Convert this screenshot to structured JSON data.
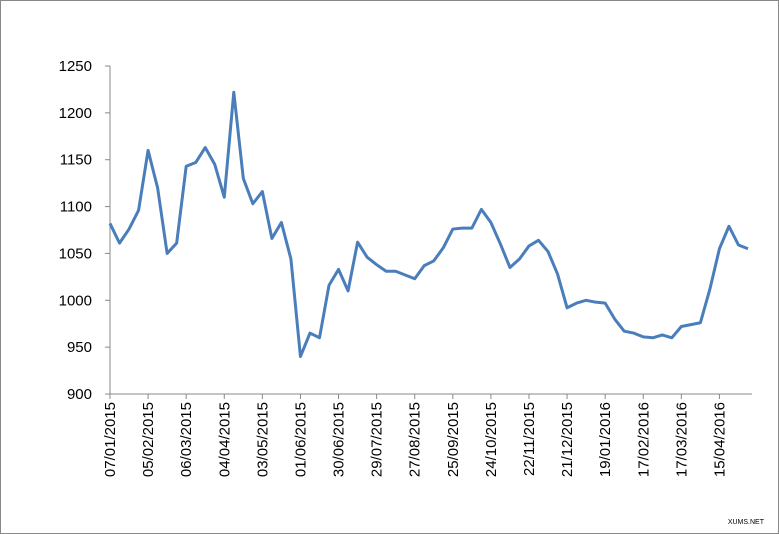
{
  "chart_data": {
    "type": "line",
    "categories": [
      "07/01/2015",
      null,
      null,
      null,
      "05/02/2015",
      null,
      null,
      null,
      "06/03/2015",
      null,
      null,
      null,
      "04/04/2015",
      null,
      null,
      null,
      "03/05/2015",
      null,
      null,
      null,
      "01/06/2015",
      null,
      null,
      null,
      "30/06/2015",
      null,
      null,
      null,
      "29/07/2015",
      null,
      null,
      null,
      "27/08/2015",
      null,
      null,
      null,
      "25/09/2015",
      null,
      null,
      null,
      "24/10/2015",
      null,
      null,
      null,
      "22/11/2015",
      null,
      null,
      null,
      "21/12/2015",
      null,
      null,
      null,
      "19/01/2016",
      null,
      null,
      null,
      "17/02/2016",
      null,
      null,
      null,
      "17/03/2016",
      null,
      null,
      null,
      "15/04/2016",
      null,
      null,
      null
    ],
    "series": [
      {
        "color": "#4a7ebb",
        "values": [
          1082,
          1061,
          1076,
          1096,
          1160,
          1120,
          1050,
          1061,
          1143,
          1147,
          1163,
          1145,
          1110,
          1222,
          1130,
          1103,
          1116,
          1066,
          1083,
          1044,
          940,
          965,
          960,
          1016,
          1033,
          1010,
          1062,
          1046,
          1038,
          1031,
          1031,
          1027,
          1023,
          1037,
          1042,
          1056,
          1076,
          1077,
          1077,
          1097,
          1083,
          1060,
          1035,
          1044,
          1058,
          1064,
          1052,
          1028,
          992,
          997,
          1000,
          998,
          997,
          980,
          967,
          965,
          961,
          960,
          963,
          960,
          972,
          974,
          976,
          1012,
          1055,
          1079,
          1059,
          1055
        ]
      }
    ],
    "ylim": [
      900,
      1250
    ],
    "yticks": [
      900,
      950,
      1000,
      1050,
      1100,
      1150,
      1200,
      1250
    ],
    "watermark": "XUMS.NET"
  }
}
